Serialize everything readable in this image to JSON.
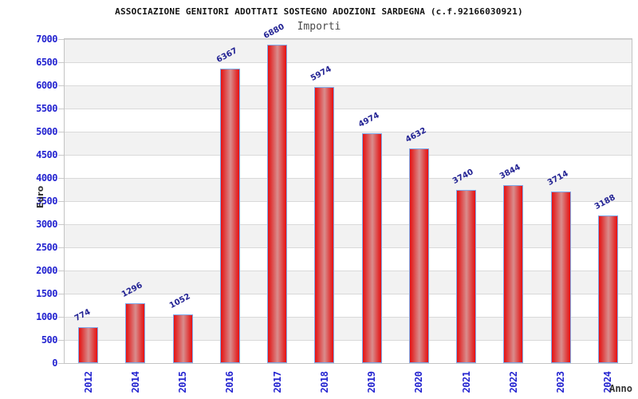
{
  "header": {
    "title": "ASSOCIAZIONE GENITORI ADOTTATI SOSTEGNO ADOZIONI SARDEGNA (c.f.92166030921)",
    "subtitle": "Importi"
  },
  "chart_data": {
    "type": "bar",
    "title": "ASSOCIAZIONE GENITORI ADOTTATI SOSTEGNO ADOZIONI SARDEGNA (c.f.92166030921)",
    "subtitle": "Importi",
    "categories": [
      "2012",
      "2014",
      "2015",
      "2016",
      "2017",
      "2018",
      "2019",
      "2020",
      "2021",
      "2022",
      "2023",
      "2024"
    ],
    "values": [
      774,
      1296,
      1052,
      6367,
      6880,
      5974,
      4974,
      4632,
      3740,
      3844,
      3714,
      3188
    ],
    "xlabel": "Anno",
    "ylabel": "Euro",
    "ylim": [
      0,
      7000
    ],
    "ytick_step": 500,
    "ytick_labels": [
      "0",
      "500",
      "1000",
      "1500",
      "2000",
      "2500",
      "3000",
      "3500",
      "4000",
      "4500",
      "5000",
      "5500",
      "6000",
      "6500",
      "7000"
    ],
    "grid": "horizontal gridlines every 500 with alternating gray/white bands",
    "legend_position": "none",
    "value_labels_rotation_deg": -28,
    "x_labels_rotation_deg": -90,
    "colors": {
      "bar_fill_edge": "#ea1111",
      "bar_fill_center": "#d98d8d",
      "bar_border": "#7ea9ea",
      "tick_label": "#2424d0",
      "value_label": "#222293",
      "band_gray": "#f2f2f2",
      "gridline": "#d9d9d9",
      "title": "#111111",
      "subtitle": "#4a4a4a",
      "axis_title": "#333333"
    }
  }
}
